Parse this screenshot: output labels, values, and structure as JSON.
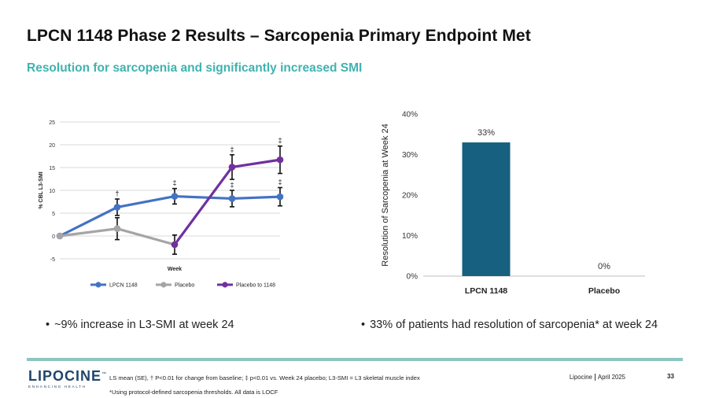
{
  "header": {
    "title": "LPCN 1148 Phase 2 Results – Sarcopenia Primary Endpoint Met",
    "subtitle": "Resolution for sarcopenia and significantly increased SMI"
  },
  "chart_data": [
    {
      "type": "line",
      "title": "",
      "xlabel": "Week",
      "ylabel": "% CBL L3-SMI",
      "ylim": [
        -5,
        25
      ],
      "yticks": [
        "25",
        "20",
        "15",
        "10",
        "5",
        "0",
        "-5"
      ],
      "grid": true,
      "legend": "bottom",
      "series": [
        {
          "name": "LPCN 1148",
          "color": "#4472c4",
          "values": [
            0,
            6.3,
            8.7,
            8.2,
            8.6
          ],
          "errors": [
            0,
            1.8,
            1.7,
            1.8,
            2.0
          ],
          "markers": [
            "",
            "†",
            "‡",
            "‡",
            "‡"
          ]
        },
        {
          "name": "Placebo",
          "color": "#a5a5a5",
          "values": [
            0,
            1.6,
            -1.9
          ],
          "errors": [
            0,
            2.4,
            2.1
          ],
          "markers": [
            "",
            "",
            ""
          ]
        },
        {
          "name": "Placebo to 1148",
          "color": "#7030a0",
          "values": [
            null,
            null,
            -1.9,
            15.1,
            16.7
          ],
          "errors": [
            0,
            0,
            0,
            2.7,
            3.0
          ],
          "markers": [
            "",
            "",
            "",
            "‡",
            "‡"
          ]
        }
      ]
    },
    {
      "type": "bar",
      "title": "",
      "xlabel": "",
      "ylabel": "Resolution of Sarcopenia at Week 24",
      "ylim": [
        0,
        40
      ],
      "yticks": [
        "0%",
        "10%",
        "20%",
        "30%",
        "40%"
      ],
      "categories": [
        "LPCN 1148",
        "Placebo"
      ],
      "values": [
        33,
        0
      ],
      "value_labels": [
        "33%",
        "0%"
      ],
      "bar_color": "#17607f"
    }
  ],
  "bullets": {
    "left": "~9% increase in L3-SMI at week 24",
    "right": "33% of patients had resolution of sarcopenia* at week 24",
    "dot": "•"
  },
  "footer": {
    "logo_text": "LIPOCINE",
    "logo_tm": "™",
    "logo_sub": "ENHANCING HEALTH",
    "footnote1": "LS mean (SE), † P<0.01 for change from baseline; ‡ p<0.01 vs. Week 24 placebo; L3-SMI = L3 skeletal muscle index",
    "footnote2": "*Using protocol-defined sarcopenia thresholds. All data is LOCF",
    "company": "Lipocine",
    "date": "April 2025",
    "page": "33"
  }
}
